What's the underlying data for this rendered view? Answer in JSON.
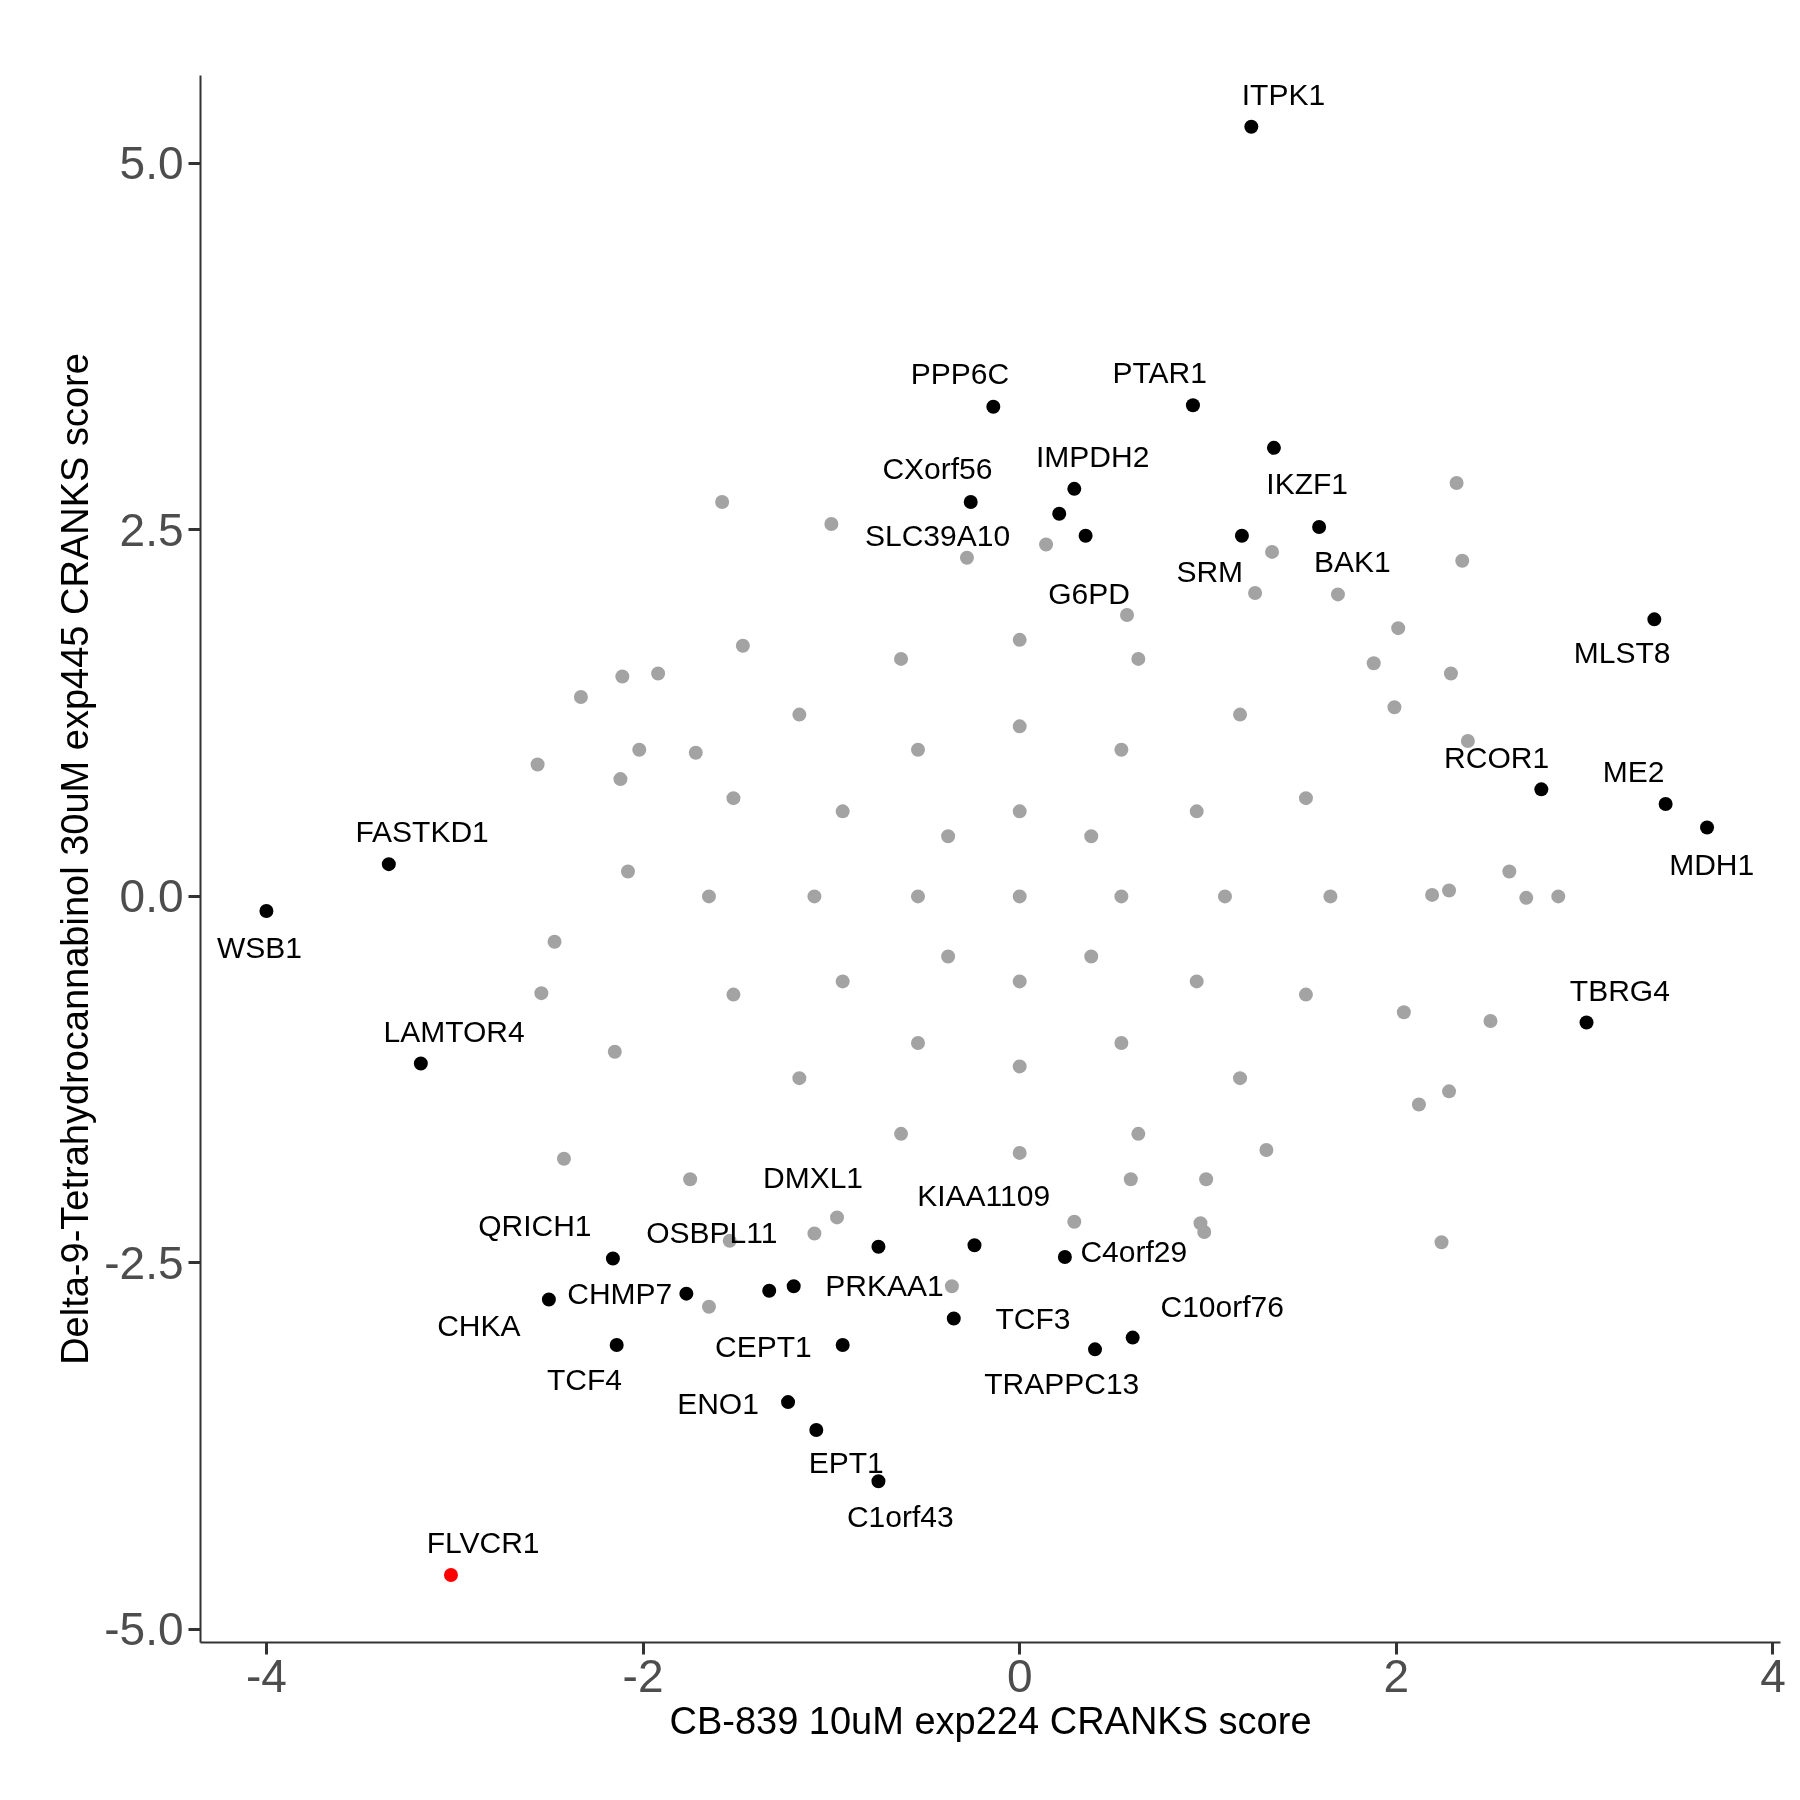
{
  "chart_data": {
    "type": "scatter",
    "xlabel": "CB-839 10uM exp224 CRANKS score",
    "ylabel": "Delta-9-Tetrahydrocannabinol 30uM exp445 CRANKS score",
    "xlim": [
      -4.35,
      4.04
    ],
    "ylim": [
      -5.09,
      5.6
    ],
    "xticks": [
      -4,
      -2,
      0,
      2,
      4
    ],
    "yticks": [
      {
        "value": -5,
        "label": "-5.0"
      },
      {
        "value": -2.5,
        "label": "-2.5"
      },
      {
        "value": 0,
        "label": "0.0"
      },
      {
        "value": 2.5,
        "label": "2.5"
      },
      {
        "value": 5,
        "label": "5.0"
      }
    ],
    "grid": false,
    "marker": "circle",
    "series": [
      {
        "color": "#a3a3a3",
        "x": [
          1.65,
          1.52,
          1.17,
          0.63,
          0,
          -0.63,
          -1.17,
          -1.52,
          -1.65,
          -1.52,
          -1.17,
          -0.63,
          0,
          0.63,
          1.17,
          1.52,
          1.09,
          0.94,
          0.54,
          0,
          -0.54,
          -0.94,
          -1.09,
          -0.94,
          -0.54,
          0,
          0.54,
          0.94,
          0.54,
          0.38,
          0,
          -0.38,
          -0.54,
          -0.38,
          0,
          0.38,
          0,
          -1.58,
          -1.0,
          -2.56,
          -2.33,
          -2.54,
          -2.47,
          -2.42,
          2.32,
          2.35,
          2.6,
          2.86,
          2.69,
          2.5,
          2.24,
          2.28,
          2.12,
          2.28,
          2.29,
          2.38,
          1.34,
          1.25,
          1.69,
          -2.12,
          -2.15,
          -1.75,
          -1.65,
          -1.54,
          -0.36,
          0.96,
          0.98,
          0.29,
          0.59,
          1.31,
          2.19,
          -1.47,
          -1.92,
          -2.11,
          -2.02,
          -1.72,
          -2.08,
          2.04,
          1.99,
          2.01,
          1.88,
          0.57,
          -0.28,
          0.14,
          0.99,
          -0.97,
          -1.09
        ],
        "values": [
          0,
          0.67,
          1.24,
          1.62,
          1.75,
          1.62,
          1.24,
          0.67,
          0,
          -0.67,
          -1.24,
          -1.62,
          -1.75,
          -1.62,
          -1.24,
          -0.67,
          0,
          0.58,
          1.0,
          1.16,
          1.0,
          0.58,
          0,
          -0.58,
          -1.0,
          -1.16,
          -1.0,
          -0.58,
          0,
          0.41,
          0.58,
          0.41,
          0,
          -0.41,
          -0.58,
          -0.41,
          0,
          2.69,
          2.54,
          0.9,
          1.36,
          -0.66,
          -0.31,
          -1.79,
          2.82,
          2.29,
          0.17,
          0.0,
          -0.01,
          -0.85,
          -2.36,
          -1.33,
          -1.42,
          0.04,
          1.52,
          1.06,
          2.35,
          2.07,
          2.06,
          0.8,
          -1.06,
          -1.93,
          -2.8,
          -2.35,
          -2.66,
          -2.23,
          -2.29,
          -2.22,
          -1.93,
          -1.73,
          0.01,
          1.71,
          1.52,
          1.5,
          1.0,
          0.98,
          0.17,
          -0.79,
          1.29,
          1.83,
          1.59,
          1.92,
          2.31,
          2.4,
          -1.93,
          -2.19,
          -2.3
        ]
      },
      {
        "color": "#000000",
        "x": [
          1.23,
          -0.14,
          0.92,
          1.35,
          1.59,
          -0.26,
          0.29,
          0.21,
          0.35,
          1.18,
          3.37,
          2.77,
          3.43,
          3.65,
          -3.35,
          -4.0,
          3.01,
          -3.18,
          -0.75,
          -0.24,
          0.24,
          -2.16,
          -1.33,
          -1.2,
          -1.77,
          -2.5,
          -2.14,
          -0.94,
          -0.35,
          0.4,
          0.6,
          -1.23,
          -1.08,
          -0.75
        ],
        "values": [
          5.25,
          3.34,
          3.35,
          3.06,
          2.52,
          2.69,
          2.78,
          2.61,
          2.46,
          2.46,
          1.89,
          0.73,
          0.63,
          0.47,
          0.22,
          -0.1,
          -0.86,
          -1.14,
          -2.39,
          -2.38,
          -2.46,
          -2.47,
          -2.69,
          -2.66,
          -2.71,
          -2.75,
          -3.06,
          -3.06,
          -2.88,
          -3.09,
          -3.01,
          -3.45,
          -3.64,
          -3.99
        ]
      },
      {
        "color": "#ff0000",
        "x": [
          -3.02
        ],
        "values": [
          -4.63
        ]
      }
    ],
    "annotations": [
      {
        "text": "ITPK1",
        "x": 1.23,
        "y": 5.25
      },
      {
        "text": "PPP6C",
        "x": -0.14,
        "y": 3.34
      },
      {
        "text": "PTAR1",
        "x": 0.92,
        "y": 3.35
      },
      {
        "text": "IKZF1",
        "x": 1.35,
        "y": 3.06
      },
      {
        "text": "BAK1",
        "x": 1.59,
        "y": 2.52
      },
      {
        "text": "CXorf56",
        "x": -0.26,
        "y": 2.69
      },
      {
        "text": "IMPDH2",
        "x": 0.29,
        "y": 2.78
      },
      {
        "text": "SLC39A10",
        "x": 0.21,
        "y": 2.61
      },
      {
        "text": "G6PD",
        "x": 0.35,
        "y": 2.46
      },
      {
        "text": "SRM",
        "x": 1.18,
        "y": 2.46
      },
      {
        "text": "MLST8",
        "x": 3.37,
        "y": 1.89
      },
      {
        "text": "RCOR1",
        "x": 2.77,
        "y": 0.73
      },
      {
        "text": "ME2",
        "x": 3.43,
        "y": 0.63
      },
      {
        "text": "MDH1",
        "x": 3.65,
        "y": 0.47
      },
      {
        "text": "FASTKD1",
        "x": -3.35,
        "y": 0.22
      },
      {
        "text": "WSB1",
        "x": -4.0,
        "y": -0.1
      },
      {
        "text": "TBRG4",
        "x": 3.01,
        "y": -0.86
      },
      {
        "text": "LAMTOR4",
        "x": -3.18,
        "y": -1.14
      },
      {
        "text": "DMXL1",
        "x": -0.75,
        "y": -2.39
      },
      {
        "text": "KIAA1109",
        "x": -0.24,
        "y": -2.38
      },
      {
        "text": "C4orf29",
        "x": 0.24,
        "y": -2.46
      },
      {
        "text": "QRICH1",
        "x": -2.16,
        "y": -2.47
      },
      {
        "text": "OSBPL11",
        "x": -1.33,
        "y": -2.69
      },
      {
        "text": "PRKAA1",
        "x": -1.2,
        "y": -2.66
      },
      {
        "text": "CHMP7",
        "x": -1.77,
        "y": -2.71
      },
      {
        "text": "CHKA",
        "x": -2.5,
        "y": -2.75
      },
      {
        "text": "TCF4",
        "x": -2.14,
        "y": -3.06
      },
      {
        "text": "CEPT1",
        "x": -0.94,
        "y": -3.06
      },
      {
        "text": "TCF3",
        "x": -0.35,
        "y": -2.88
      },
      {
        "text": "TRAPPC13",
        "x": 0.4,
        "y": -3.09
      },
      {
        "text": "C10orf76",
        "x": 0.6,
        "y": -3.01
      },
      {
        "text": "ENO1",
        "x": -1.23,
        "y": -3.45
      },
      {
        "text": "EPT1",
        "x": -1.08,
        "y": -3.64
      },
      {
        "text": "C1orf43",
        "x": -0.75,
        "y": -3.99
      },
      {
        "text": "FLVCR1",
        "x": -3.02,
        "y": -4.63
      }
    ]
  }
}
